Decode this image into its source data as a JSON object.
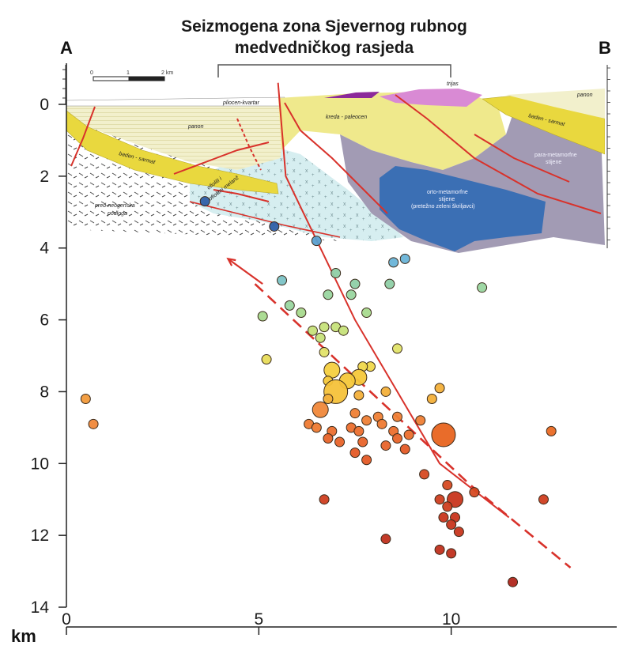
{
  "title_line1": "Seizmogena zona Sjevernog rubnog",
  "title_line2": "medvedničkog rasjeda",
  "point_a": "A",
  "point_b": "B",
  "depth_unit": "km",
  "distance_unit": "km",
  "depth_ticks": [
    "0",
    "2",
    "4",
    "6",
    "8",
    "10",
    "12",
    "14"
  ],
  "distance_ticks": [
    "0",
    "5",
    "10"
  ],
  "scale_bar": {
    "labels": [
      "0",
      "1",
      "2 km"
    ]
  },
  "colors": {
    "fault": "#d8322b",
    "kreda": "#efe98c",
    "badenian": "#e9d83e",
    "panon": "#f2f0cc",
    "ophiolite": "#d6eef0",
    "para_metamorphic": "#a29bb4",
    "ortho_metamorphic": "#3b6fb4",
    "trijas": "#d98ad4",
    "trijas_core": "#8c2a9a",
    "basement": "#ffffff"
  },
  "geology_labels": {
    "pliocen_kvartar": "pliocen-kvartar",
    "panon_left": "panon",
    "panon_right": "panon",
    "baden_sarmat_left": "baden - sarmat",
    "baden_sarmat_right": "baden - sarmat",
    "kreda_paleocen": "kreda - paleocen",
    "trijas": "trijas",
    "para_metamorfne_1": "para-metamorfne",
    "para_metamorfne_2": "stijene",
    "orto_1": "orto-metamorfne",
    "orto_2": "stijene",
    "orto_3": "(pretežno zeleni škriljavci)",
    "ofioliti_1": "ofioliti i",
    "ofioliti_2": "ofiolitni melanž",
    "pred_neogenska_1": "pred-neogenska",
    "pred_neogenska_2": "podloga"
  },
  "chart_data": {
    "type": "scatter",
    "title": "Seizmogena zona Sjevernog rubnog medvedničkog rasjeda",
    "xlabel": "km",
    "ylabel": "km",
    "xlim": [
      0,
      13
    ],
    "ylim": [
      0,
      14
    ],
    "y_inverted": true,
    "section_ends": [
      "A",
      "B"
    ],
    "bracket_range_km": [
      4,
      10
    ],
    "hypocenters": [
      {
        "x": 3.6,
        "y": 2.7,
        "size": 1,
        "color": "#2f5fa8"
      },
      {
        "x": 5.4,
        "y": 3.4,
        "size": 1,
        "color": "#2f5fa8"
      },
      {
        "x": 6.5,
        "y": 3.8,
        "size": 1,
        "color": "#5aa0d0"
      },
      {
        "x": 8.8,
        "y": 4.3,
        "size": 1,
        "color": "#6ab4d8"
      },
      {
        "x": 8.5,
        "y": 4.4,
        "size": 1,
        "color": "#6ab4d8"
      },
      {
        "x": 5.6,
        "y": 4.9,
        "size": 1,
        "color": "#7cc3c6"
      },
      {
        "x": 7.5,
        "y": 5.0,
        "size": 1,
        "color": "#8fcfa6"
      },
      {
        "x": 7.0,
        "y": 4.7,
        "size": 1,
        "color": "#8fcfa6"
      },
      {
        "x": 8.4,
        "y": 5.0,
        "size": 1,
        "color": "#8fcfa6"
      },
      {
        "x": 10.8,
        "y": 5.1,
        "size": 1,
        "color": "#9ad6a0"
      },
      {
        "x": 7.4,
        "y": 5.3,
        "size": 1,
        "color": "#9ad6a0"
      },
      {
        "x": 6.8,
        "y": 5.3,
        "size": 1,
        "color": "#9ad6a0"
      },
      {
        "x": 5.8,
        "y": 5.6,
        "size": 1,
        "color": "#9ad6a0"
      },
      {
        "x": 6.1,
        "y": 5.8,
        "size": 1,
        "color": "#a8da8e"
      },
      {
        "x": 7.8,
        "y": 5.8,
        "size": 1,
        "color": "#a8da8e"
      },
      {
        "x": 5.1,
        "y": 5.9,
        "size": 1,
        "color": "#a8da8e"
      },
      {
        "x": 6.7,
        "y": 6.2,
        "size": 1,
        "color": "#c6e27a"
      },
      {
        "x": 7.0,
        "y": 6.2,
        "size": 1,
        "color": "#c6e27a"
      },
      {
        "x": 7.2,
        "y": 6.3,
        "size": 1,
        "color": "#c6e27a"
      },
      {
        "x": 6.4,
        "y": 6.3,
        "size": 1,
        "color": "#c6e27a"
      },
      {
        "x": 6.6,
        "y": 6.5,
        "size": 1,
        "color": "#c6e27a"
      },
      {
        "x": 6.7,
        "y": 6.9,
        "size": 1,
        "color": "#e2e46a"
      },
      {
        "x": 8.6,
        "y": 6.8,
        "size": 1,
        "color": "#e2e46a"
      },
      {
        "x": 5.2,
        "y": 7.1,
        "size": 1,
        "color": "#e8dc5a"
      },
      {
        "x": 7.9,
        "y": 7.3,
        "size": 1,
        "color": "#f0d84c"
      },
      {
        "x": 7.7,
        "y": 7.3,
        "size": 1,
        "color": "#f0d84c"
      },
      {
        "x": 6.9,
        "y": 7.4,
        "size": 2,
        "color": "#f5d040"
      },
      {
        "x": 7.6,
        "y": 7.6,
        "size": 2,
        "color": "#f5c83a"
      },
      {
        "x": 7.3,
        "y": 7.7,
        "size": 2,
        "color": "#f5c83a"
      },
      {
        "x": 6.8,
        "y": 7.7,
        "size": 1,
        "color": "#f5c83a"
      },
      {
        "x": 7.0,
        "y": 8.0,
        "size": 3,
        "color": "#f5c23a"
      },
      {
        "x": 7.6,
        "y": 8.1,
        "size": 1,
        "color": "#f3b03a"
      },
      {
        "x": 8.3,
        "y": 8.0,
        "size": 1,
        "color": "#f3b03a"
      },
      {
        "x": 6.8,
        "y": 8.2,
        "size": 1,
        "color": "#f3b03a"
      },
      {
        "x": 9.7,
        "y": 7.9,
        "size": 1,
        "color": "#f3b03a"
      },
      {
        "x": 9.5,
        "y": 8.2,
        "size": 1,
        "color": "#f3b03a"
      },
      {
        "x": 0.5,
        "y": 8.2,
        "size": 1,
        "color": "#f29a3a"
      },
      {
        "x": 0.7,
        "y": 8.9,
        "size": 1,
        "color": "#f0883a"
      },
      {
        "x": 6.6,
        "y": 8.5,
        "size": 2,
        "color": "#f0883a"
      },
      {
        "x": 7.5,
        "y": 8.6,
        "size": 1,
        "color": "#ef7f35"
      },
      {
        "x": 8.1,
        "y": 8.7,
        "size": 1,
        "color": "#ef7f35"
      },
      {
        "x": 8.6,
        "y": 8.7,
        "size": 1,
        "color": "#ef7f35"
      },
      {
        "x": 7.8,
        "y": 8.8,
        "size": 1,
        "color": "#ef7f35"
      },
      {
        "x": 9.2,
        "y": 8.8,
        "size": 1,
        "color": "#ef7f35"
      },
      {
        "x": 8.2,
        "y": 8.9,
        "size": 1,
        "color": "#ee7a32"
      },
      {
        "x": 6.3,
        "y": 8.9,
        "size": 1,
        "color": "#ee7a32"
      },
      {
        "x": 6.5,
        "y": 9.0,
        "size": 1,
        "color": "#ee7a32"
      },
      {
        "x": 6.9,
        "y": 9.1,
        "size": 1,
        "color": "#ec6f2e"
      },
      {
        "x": 7.4,
        "y": 9.0,
        "size": 1,
        "color": "#ec6f2e"
      },
      {
        "x": 7.6,
        "y": 9.1,
        "size": 1,
        "color": "#ec6f2e"
      },
      {
        "x": 8.5,
        "y": 9.1,
        "size": 1,
        "color": "#ec6f2e"
      },
      {
        "x": 8.9,
        "y": 9.2,
        "size": 1,
        "color": "#ec6f2e"
      },
      {
        "x": 9.8,
        "y": 9.2,
        "size": 3,
        "color": "#e8641f"
      },
      {
        "x": 12.6,
        "y": 9.1,
        "size": 1,
        "color": "#ea6a24"
      },
      {
        "x": 6.8,
        "y": 9.3,
        "size": 1,
        "color": "#e8642a"
      },
      {
        "x": 7.1,
        "y": 9.4,
        "size": 1,
        "color": "#e8642a"
      },
      {
        "x": 7.7,
        "y": 9.4,
        "size": 1,
        "color": "#e8642a"
      },
      {
        "x": 8.3,
        "y": 9.5,
        "size": 1,
        "color": "#e8642a"
      },
      {
        "x": 8.6,
        "y": 9.3,
        "size": 1,
        "color": "#e8642a"
      },
      {
        "x": 7.5,
        "y": 9.7,
        "size": 1,
        "color": "#e45a26"
      },
      {
        "x": 7.8,
        "y": 9.9,
        "size": 1,
        "color": "#e45a26"
      },
      {
        "x": 8.8,
        "y": 9.6,
        "size": 1,
        "color": "#e45a26"
      },
      {
        "x": 9.3,
        "y": 10.3,
        "size": 1,
        "color": "#d64a22"
      },
      {
        "x": 9.9,
        "y": 10.6,
        "size": 1,
        "color": "#d64a22"
      },
      {
        "x": 10.6,
        "y": 10.8,
        "size": 1,
        "color": "#d64a22"
      },
      {
        "x": 6.7,
        "y": 11.0,
        "size": 1,
        "color": "#cf3e20"
      },
      {
        "x": 9.7,
        "y": 11.0,
        "size": 1,
        "color": "#cf3e20"
      },
      {
        "x": 10.1,
        "y": 11.0,
        "size": 2,
        "color": "#c8361e"
      },
      {
        "x": 9.9,
        "y": 11.2,
        "size": 1,
        "color": "#cf3e20"
      },
      {
        "x": 12.4,
        "y": 11.0,
        "size": 1,
        "color": "#cf3e20"
      },
      {
        "x": 9.8,
        "y": 11.5,
        "size": 1,
        "color": "#c8361e"
      },
      {
        "x": 10.1,
        "y": 11.5,
        "size": 1,
        "color": "#c8361e"
      },
      {
        "x": 10.0,
        "y": 11.7,
        "size": 1,
        "color": "#c8361e"
      },
      {
        "x": 10.2,
        "y": 11.9,
        "size": 1,
        "color": "#c8361e"
      },
      {
        "x": 8.3,
        "y": 12.1,
        "size": 1,
        "color": "#c0301e"
      },
      {
        "x": 9.7,
        "y": 12.4,
        "size": 1,
        "color": "#c0301e"
      },
      {
        "x": 10.0,
        "y": 12.5,
        "size": 1,
        "color": "#c0301e"
      },
      {
        "x": 11.6,
        "y": 13.3,
        "size": 1,
        "color": "#b0261c"
      }
    ],
    "faults": [
      {
        "style": "solid",
        "points": [
          [
            5.5,
            -0.6
          ],
          [
            5.7,
            2
          ],
          [
            6.6,
            4
          ],
          [
            7.5,
            6
          ],
          [
            8.6,
            8
          ],
          [
            9.7,
            10
          ],
          [
            11.5,
            11.5
          ]
        ]
      },
      {
        "style": "dashed",
        "points": [
          [
            4.9,
            5.0
          ],
          [
            6.8,
            6.9
          ],
          [
            8.8,
            8.9
          ],
          [
            10.5,
            10.6
          ],
          [
            13.1,
            12.9
          ]
        ]
      },
      {
        "style": "arrow",
        "points": [
          [
            5.1,
            5.0
          ],
          [
            4.2,
            4.3
          ]
        ]
      }
    ]
  }
}
